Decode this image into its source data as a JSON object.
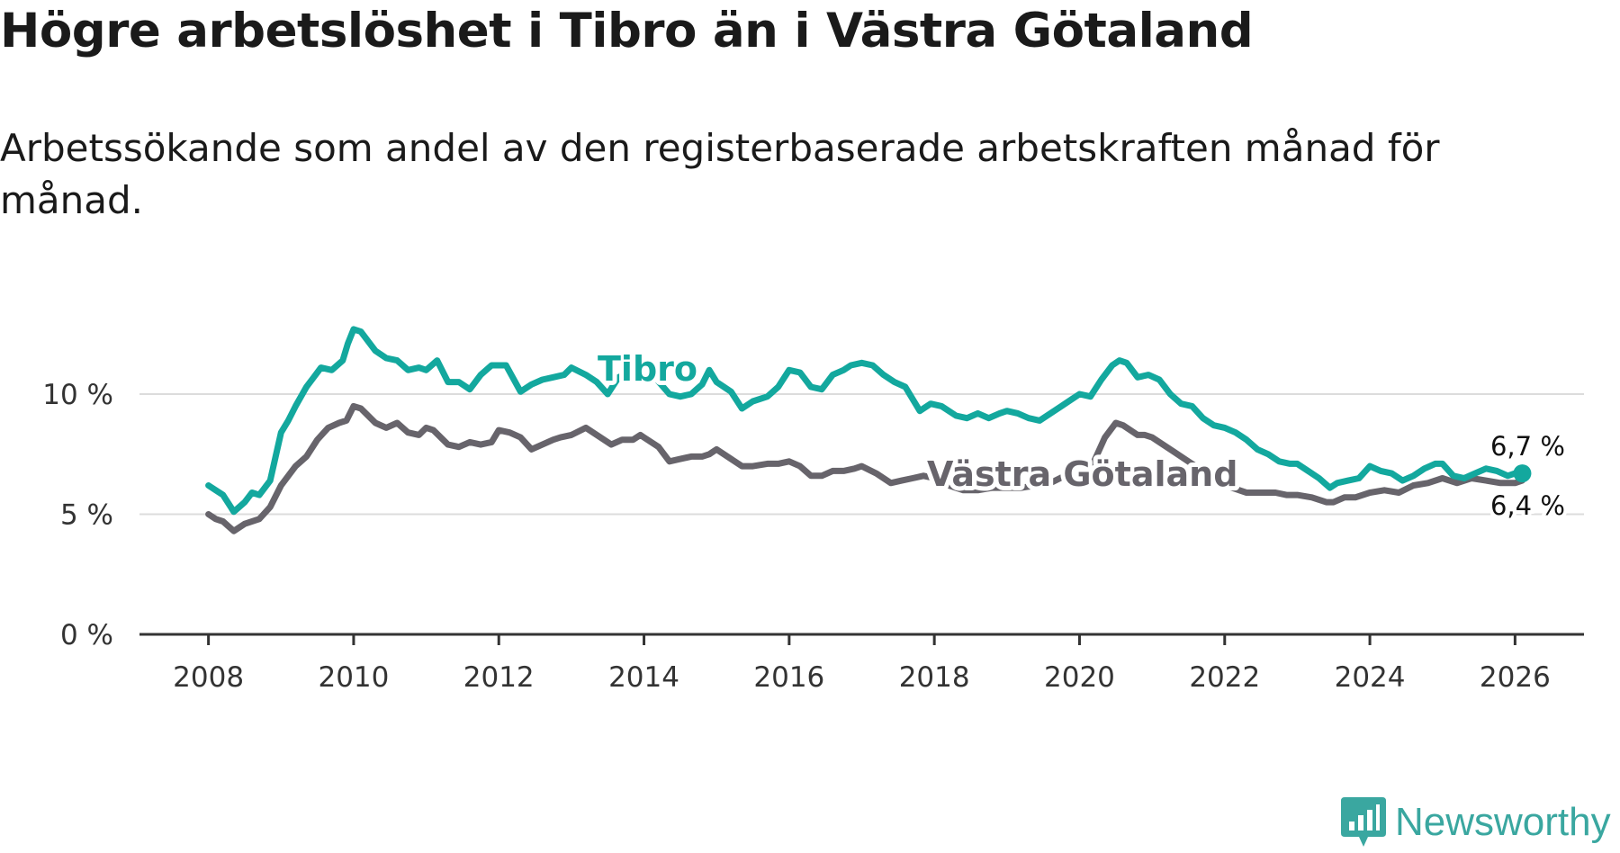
{
  "title": "Högre arbetslöshet i Tibro än i Västra Götaland",
  "subtitle": "Arbetssökande som andel av den registerbaserade arbetskraften månad för månad.",
  "brand": "Newsworthy",
  "colors": {
    "tibro": "#13a89e",
    "vg": "#67646b",
    "grid": "#dcdcdc",
    "axis": "#333333",
    "brand": "#3aa7a0"
  },
  "chart_data": {
    "type": "line",
    "title": "Högre arbetslöshet i Tibro än i Västra Götaland",
    "xlabel": "",
    "ylabel": "",
    "xlim": [
      2007.05,
      2026.95
    ],
    "ylim": [
      0,
      10
    ],
    "x_ticks": [
      {
        "value": 2008,
        "label": "2008"
      },
      {
        "value": 2010,
        "label": "2010"
      },
      {
        "value": 2012,
        "label": "2012"
      },
      {
        "value": 2014,
        "label": "2014"
      },
      {
        "value": 2016,
        "label": "2016"
      },
      {
        "value": 2018,
        "label": "2018"
      },
      {
        "value": 2020,
        "label": "2020"
      },
      {
        "value": 2022,
        "label": "2022"
      },
      {
        "value": 2024,
        "label": "2024"
      },
      {
        "value": 2026,
        "label": "2026"
      }
    ],
    "y_ticks": [
      {
        "value": 0,
        "label": "0 %"
      },
      {
        "value": 5,
        "label": "5 %"
      },
      {
        "value": 10,
        "label": "10 %"
      }
    ],
    "series": [
      {
        "name": "Västra Götaland",
        "label": "Västra Götaland",
        "end_label": "6,4 %",
        "points": [
          [
            2008.0,
            5.0
          ],
          [
            2008.1,
            4.8
          ],
          [
            2008.2,
            4.7
          ],
          [
            2008.35,
            4.3
          ],
          [
            2008.5,
            4.6
          ],
          [
            2008.7,
            4.8
          ],
          [
            2008.85,
            5.3
          ],
          [
            2009.0,
            6.2
          ],
          [
            2009.2,
            7.0
          ],
          [
            2009.35,
            7.4
          ],
          [
            2009.5,
            8.1
          ],
          [
            2009.65,
            8.6
          ],
          [
            2009.8,
            8.8
          ],
          [
            2009.9,
            8.9
          ],
          [
            2010.0,
            9.5
          ],
          [
            2010.1,
            9.4
          ],
          [
            2010.3,
            8.8
          ],
          [
            2010.45,
            8.6
          ],
          [
            2010.6,
            8.8
          ],
          [
            2010.75,
            8.4
          ],
          [
            2010.9,
            8.3
          ],
          [
            2011.0,
            8.6
          ],
          [
            2011.1,
            8.5
          ],
          [
            2011.3,
            7.9
          ],
          [
            2011.45,
            7.8
          ],
          [
            2011.6,
            8.0
          ],
          [
            2011.75,
            7.9
          ],
          [
            2011.9,
            8.0
          ],
          [
            2012.0,
            8.5
          ],
          [
            2012.15,
            8.4
          ],
          [
            2012.3,
            8.2
          ],
          [
            2012.45,
            7.7
          ],
          [
            2012.6,
            7.9
          ],
          [
            2012.75,
            8.1
          ],
          [
            2012.85,
            8.2
          ],
          [
            2013.0,
            8.3
          ],
          [
            2013.2,
            8.6
          ],
          [
            2013.4,
            8.2
          ],
          [
            2013.55,
            7.9
          ],
          [
            2013.7,
            8.1
          ],
          [
            2013.85,
            8.1
          ],
          [
            2013.95,
            8.3
          ],
          [
            2014.0,
            8.2
          ],
          [
            2014.2,
            7.8
          ],
          [
            2014.35,
            7.2
          ],
          [
            2014.5,
            7.3
          ],
          [
            2014.65,
            7.4
          ],
          [
            2014.8,
            7.4
          ],
          [
            2014.9,
            7.5
          ],
          [
            2015.0,
            7.7
          ],
          [
            2015.2,
            7.3
          ],
          [
            2015.35,
            7.0
          ],
          [
            2015.5,
            7.0
          ],
          [
            2015.7,
            7.1
          ],
          [
            2015.85,
            7.1
          ],
          [
            2016.0,
            7.2
          ],
          [
            2016.15,
            7.0
          ],
          [
            2016.3,
            6.6
          ],
          [
            2016.45,
            6.6
          ],
          [
            2016.6,
            6.8
          ],
          [
            2016.75,
            6.8
          ],
          [
            2016.9,
            6.9
          ],
          [
            2017.0,
            7.0
          ],
          [
            2017.2,
            6.7
          ],
          [
            2017.4,
            6.3
          ],
          [
            2017.55,
            6.4
          ],
          [
            2017.7,
            6.5
          ],
          [
            2017.85,
            6.6
          ],
          [
            2018.0,
            6.5
          ],
          [
            2018.2,
            6.2
          ],
          [
            2018.4,
            6.0
          ],
          [
            2018.6,
            6.0
          ],
          [
            2018.8,
            6.1
          ],
          [
            2019.0,
            6.1
          ],
          [
            2019.2,
            6.1
          ],
          [
            2019.4,
            6.2
          ],
          [
            2019.6,
            6.3
          ],
          [
            2019.8,
            6.6
          ],
          [
            2020.0,
            6.7
          ],
          [
            2020.2,
            7.2
          ],
          [
            2020.35,
            8.2
          ],
          [
            2020.5,
            8.8
          ],
          [
            2020.6,
            8.7
          ],
          [
            2020.8,
            8.3
          ],
          [
            2020.9,
            8.3
          ],
          [
            2021.0,
            8.2
          ],
          [
            2021.1,
            8.0
          ],
          [
            2021.3,
            7.6
          ],
          [
            2021.5,
            7.2
          ],
          [
            2021.7,
            6.8
          ],
          [
            2021.9,
            6.3
          ],
          [
            2022.0,
            6.2
          ],
          [
            2022.1,
            6.1
          ],
          [
            2022.3,
            5.9
          ],
          [
            2022.5,
            5.9
          ],
          [
            2022.7,
            5.9
          ],
          [
            2022.85,
            5.8
          ],
          [
            2023.0,
            5.8
          ],
          [
            2023.2,
            5.7
          ],
          [
            2023.4,
            5.5
          ],
          [
            2023.5,
            5.5
          ],
          [
            2023.65,
            5.7
          ],
          [
            2023.8,
            5.7
          ],
          [
            2024.0,
            5.9
          ],
          [
            2024.2,
            6.0
          ],
          [
            2024.4,
            5.9
          ],
          [
            2024.6,
            6.2
          ],
          [
            2024.8,
            6.3
          ],
          [
            2025.0,
            6.5
          ],
          [
            2025.2,
            6.3
          ],
          [
            2025.4,
            6.5
          ],
          [
            2025.6,
            6.4
          ],
          [
            2025.8,
            6.3
          ],
          [
            2026.0,
            6.3
          ],
          [
            2026.1,
            6.4
          ]
        ]
      },
      {
        "name": "Tibro",
        "label": "Tibro",
        "end_label": "6,7 %",
        "points": [
          [
            2008.0,
            6.2
          ],
          [
            2008.1,
            6.0
          ],
          [
            2008.2,
            5.8
          ],
          [
            2008.35,
            5.1
          ],
          [
            2008.5,
            5.5
          ],
          [
            2008.6,
            5.9
          ],
          [
            2008.7,
            5.8
          ],
          [
            2008.85,
            6.4
          ],
          [
            2009.0,
            8.4
          ],
          [
            2009.1,
            8.9
          ],
          [
            2009.2,
            9.5
          ],
          [
            2009.35,
            10.3
          ],
          [
            2009.45,
            10.7
          ],
          [
            2009.55,
            11.1
          ],
          [
            2009.7,
            11.0
          ],
          [
            2009.85,
            11.4
          ],
          [
            2009.92,
            12.1
          ],
          [
            2010.0,
            12.7
          ],
          [
            2010.1,
            12.6
          ],
          [
            2010.3,
            11.8
          ],
          [
            2010.45,
            11.5
          ],
          [
            2010.6,
            11.4
          ],
          [
            2010.75,
            11.0
          ],
          [
            2010.9,
            11.1
          ],
          [
            2011.0,
            11.0
          ],
          [
            2011.15,
            11.4
          ],
          [
            2011.3,
            10.5
          ],
          [
            2011.45,
            10.5
          ],
          [
            2011.6,
            10.2
          ],
          [
            2011.75,
            10.8
          ],
          [
            2011.9,
            11.2
          ],
          [
            2012.1,
            11.2
          ],
          [
            2012.3,
            10.1
          ],
          [
            2012.45,
            10.4
          ],
          [
            2012.6,
            10.6
          ],
          [
            2012.75,
            10.7
          ],
          [
            2012.9,
            10.8
          ],
          [
            2013.0,
            11.1
          ],
          [
            2013.2,
            10.8
          ],
          [
            2013.35,
            10.5
          ],
          [
            2013.5,
            10.0
          ],
          [
            2013.65,
            10.7
          ],
          [
            2013.8,
            10.9
          ],
          [
            2013.9,
            10.6
          ],
          [
            2014.0,
            10.8
          ],
          [
            2014.15,
            10.7
          ],
          [
            2014.35,
            10.0
          ],
          [
            2014.5,
            9.9
          ],
          [
            2014.65,
            10.0
          ],
          [
            2014.8,
            10.4
          ],
          [
            2014.9,
            11.0
          ],
          [
            2015.0,
            10.5
          ],
          [
            2015.2,
            10.1
          ],
          [
            2015.35,
            9.4
          ],
          [
            2015.5,
            9.7
          ],
          [
            2015.7,
            9.9
          ],
          [
            2015.85,
            10.3
          ],
          [
            2016.0,
            11.0
          ],
          [
            2016.15,
            10.9
          ],
          [
            2016.3,
            10.3
          ],
          [
            2016.45,
            10.2
          ],
          [
            2016.6,
            10.8
          ],
          [
            2016.75,
            11.0
          ],
          [
            2016.85,
            11.2
          ],
          [
            2017.0,
            11.3
          ],
          [
            2017.15,
            11.2
          ],
          [
            2017.3,
            10.8
          ],
          [
            2017.45,
            10.5
          ],
          [
            2017.6,
            10.3
          ],
          [
            2017.8,
            9.3
          ],
          [
            2017.95,
            9.6
          ],
          [
            2018.1,
            9.5
          ],
          [
            2018.3,
            9.1
          ],
          [
            2018.45,
            9.0
          ],
          [
            2018.6,
            9.2
          ],
          [
            2018.75,
            9.0
          ],
          [
            2018.9,
            9.2
          ],
          [
            2019.0,
            9.3
          ],
          [
            2019.15,
            9.2
          ],
          [
            2019.3,
            9.0
          ],
          [
            2019.45,
            8.9
          ],
          [
            2019.6,
            9.2
          ],
          [
            2019.75,
            9.5
          ],
          [
            2019.9,
            9.8
          ],
          [
            2020.0,
            10.0
          ],
          [
            2020.15,
            9.9
          ],
          [
            2020.3,
            10.6
          ],
          [
            2020.45,
            11.2
          ],
          [
            2020.55,
            11.4
          ],
          [
            2020.65,
            11.3
          ],
          [
            2020.8,
            10.7
          ],
          [
            2020.95,
            10.8
          ],
          [
            2021.1,
            10.6
          ],
          [
            2021.25,
            10.0
          ],
          [
            2021.4,
            9.6
          ],
          [
            2021.55,
            9.5
          ],
          [
            2021.7,
            9.0
          ],
          [
            2021.85,
            8.7
          ],
          [
            2022.0,
            8.6
          ],
          [
            2022.15,
            8.4
          ],
          [
            2022.3,
            8.1
          ],
          [
            2022.45,
            7.7
          ],
          [
            2022.6,
            7.5
          ],
          [
            2022.75,
            7.2
          ],
          [
            2022.9,
            7.1
          ],
          [
            2023.0,
            7.1
          ],
          [
            2023.15,
            6.8
          ],
          [
            2023.3,
            6.5
          ],
          [
            2023.45,
            6.1
          ],
          [
            2023.55,
            6.3
          ],
          [
            2023.7,
            6.4
          ],
          [
            2023.85,
            6.5
          ],
          [
            2024.0,
            7.0
          ],
          [
            2024.15,
            6.8
          ],
          [
            2024.3,
            6.7
          ],
          [
            2024.45,
            6.4
          ],
          [
            2024.6,
            6.6
          ],
          [
            2024.75,
            6.9
          ],
          [
            2024.9,
            7.1
          ],
          [
            2025.0,
            7.1
          ],
          [
            2025.15,
            6.6
          ],
          [
            2025.3,
            6.5
          ],
          [
            2025.45,
            6.7
          ],
          [
            2025.6,
            6.9
          ],
          [
            2025.75,
            6.8
          ],
          [
            2025.9,
            6.6
          ],
          [
            2026.0,
            6.7
          ],
          [
            2026.1,
            6.7
          ]
        ]
      }
    ]
  }
}
